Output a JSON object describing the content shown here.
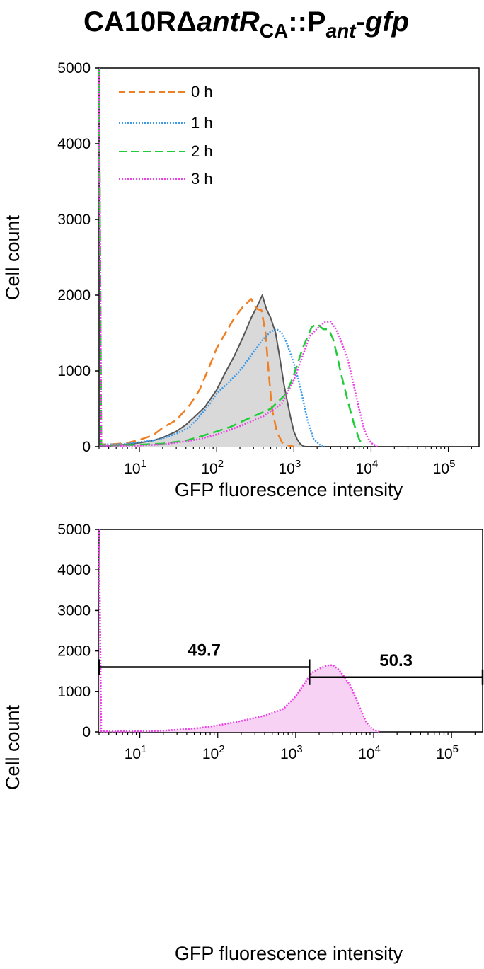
{
  "title": {
    "t1": "CA10RΔ",
    "t2": "antR",
    "t3": "CA",
    "t4": "::P",
    "t5": "ant",
    "t6": "-",
    "t7": "gfp"
  },
  "colors": {
    "h0": "#f07f22",
    "h1": "#3b9ae8",
    "h2": "#20cc3a",
    "h3": "#ec3fe6",
    "filled": "#d9d9d9",
    "filled_line": "#555555",
    "pink_fill": "#f8d2f4"
  },
  "chart_data": [
    {
      "type": "area",
      "xlabel": "GFP fluorescence intensity",
      "ylabel": "Cell count",
      "xscale": "log",
      "xlim": [
        3,
        250000
      ],
      "ylim": [
        0,
        5000
      ],
      "yticks": [
        "0",
        "1000",
        "2000",
        "3000",
        "4000",
        "5000"
      ],
      "xticks": [
        {
          "value": 10,
          "base": "10",
          "exp": "1"
        },
        {
          "value": 100,
          "base": "10",
          "exp": "2"
        },
        {
          "value": 1000,
          "base": "10",
          "exp": "3"
        },
        {
          "value": 10000,
          "base": "10",
          "exp": "4"
        },
        {
          "value": 100000,
          "base": "10",
          "exp": "5"
        }
      ],
      "legend_position": "top-left",
      "series": [
        {
          "name": "0 h",
          "style": "dashed",
          "color_key": "h0",
          "x": [
            3,
            3.2,
            4,
            5,
            7,
            10,
            15,
            20,
            30,
            45,
            60,
            80,
            100,
            130,
            170,
            220,
            280,
            330,
            380,
            430,
            470,
            520,
            600,
            700,
            800,
            900,
            1000
          ],
          "y": [
            5000,
            30,
            30,
            35,
            50,
            90,
            150,
            250,
            350,
            550,
            750,
            1050,
            1300,
            1500,
            1700,
            1850,
            1950,
            1820,
            1800,
            1500,
            1000,
            500,
            200,
            60,
            20,
            10,
            0
          ]
        },
        {
          "name": "1 h",
          "style": "dotted",
          "color_key": "h1",
          "x": [
            3,
            3.2,
            4,
            5,
            7,
            10,
            15,
            20,
            30,
            45,
            60,
            80,
            100,
            150,
            200,
            300,
            400,
            500,
            600,
            700,
            800,
            1000,
            1200,
            1500,
            1800,
            2200,
            2500
          ],
          "y": [
            5000,
            30,
            30,
            30,
            40,
            60,
            80,
            110,
            170,
            260,
            400,
            550,
            700,
            870,
            1000,
            1250,
            1420,
            1520,
            1550,
            1500,
            1380,
            1100,
            800,
            350,
            100,
            20,
            0
          ]
        },
        {
          "name": "2 h",
          "style": "dashed",
          "color_key": "h2",
          "x": [
            3,
            3.2,
            4,
            10,
            20,
            40,
            60,
            100,
            150,
            200,
            300,
            500,
            800,
            1000,
            1300,
            1700,
            2000,
            2400,
            2800,
            3200,
            3600,
            4000,
            5000,
            6000,
            7000,
            8000
          ],
          "y": [
            5000,
            20,
            15,
            25,
            40,
            80,
            130,
            200,
            260,
            320,
            400,
            500,
            700,
            950,
            1300,
            1580,
            1620,
            1550,
            1550,
            1430,
            1220,
            1000,
            600,
            300,
            100,
            0
          ]
        },
        {
          "name": "3 h",
          "style": "dotted",
          "color_key": "h3",
          "x": [
            3,
            3.2,
            4,
            10,
            20,
            40,
            60,
            100,
            200,
            400,
            700,
            1000,
            1300,
            1600,
            2000,
            2500,
            3000,
            3500,
            4000,
            5000,
            6000,
            7000,
            8000,
            9000,
            10000,
            12000
          ],
          "y": [
            5000,
            15,
            10,
            15,
            30,
            70,
            100,
            160,
            270,
            400,
            570,
            880,
            1200,
            1460,
            1560,
            1640,
            1650,
            1550,
            1420,
            1150,
            800,
            500,
            250,
            120,
            50,
            0
          ]
        },
        {
          "name": "",
          "style": "filled",
          "color_key": "filled",
          "x": [
            3,
            5,
            10,
            15,
            20,
            30,
            40,
            50,
            70,
            100,
            130,
            170,
            220,
            280,
            340,
            390,
            440,
            500,
            580,
            650,
            750,
            900,
            1000,
            1100,
            1200,
            1300,
            1400
          ],
          "y": [
            0,
            15,
            50,
            80,
            120,
            200,
            290,
            380,
            520,
            750,
            980,
            1200,
            1450,
            1700,
            1870,
            2000,
            1820,
            1700,
            1500,
            1200,
            800,
            400,
            200,
            100,
            40,
            10,
            0
          ]
        }
      ]
    },
    {
      "type": "area",
      "xlabel": "GFP fluorescence intensity",
      "ylabel": "Cell count",
      "xscale": "log",
      "xlim": [
        3,
        250000
      ],
      "ylim": [
        0,
        5000
      ],
      "yticks": [
        "0",
        "1000",
        "2000",
        "3000",
        "4000",
        "5000"
      ],
      "xticks": [
        {
          "value": 10,
          "base": "10",
          "exp": "1"
        },
        {
          "value": 100,
          "base": "10",
          "exp": "2"
        },
        {
          "value": 1000,
          "base": "10",
          "exp": "3"
        },
        {
          "value": 10000,
          "base": "10",
          "exp": "4"
        },
        {
          "value": 100000,
          "base": "10",
          "exp": "5"
        }
      ],
      "series": [
        {
          "name": "",
          "style": "dotted-filled",
          "color_key": "h3",
          "x": [
            3,
            3.2,
            4,
            10,
            20,
            40,
            60,
            100,
            200,
            400,
            700,
            1000,
            1300,
            1600,
            2000,
            2500,
            3000,
            3500,
            4000,
            5000,
            6000,
            7000,
            8000,
            9000,
            10000,
            12000
          ],
          "y": [
            5000,
            15,
            10,
            15,
            30,
            70,
            100,
            160,
            270,
            400,
            570,
            880,
            1200,
            1460,
            1560,
            1640,
            1650,
            1550,
            1420,
            1150,
            800,
            500,
            250,
            120,
            50,
            0
          ]
        }
      ],
      "gates": [
        {
          "label": "49.7",
          "x_start": 3,
          "x_end": 1500,
          "y": 1600
        },
        {
          "label": "50.3",
          "x_start": 1500,
          "x_end": 250000,
          "y": 1350
        }
      ]
    }
  ]
}
